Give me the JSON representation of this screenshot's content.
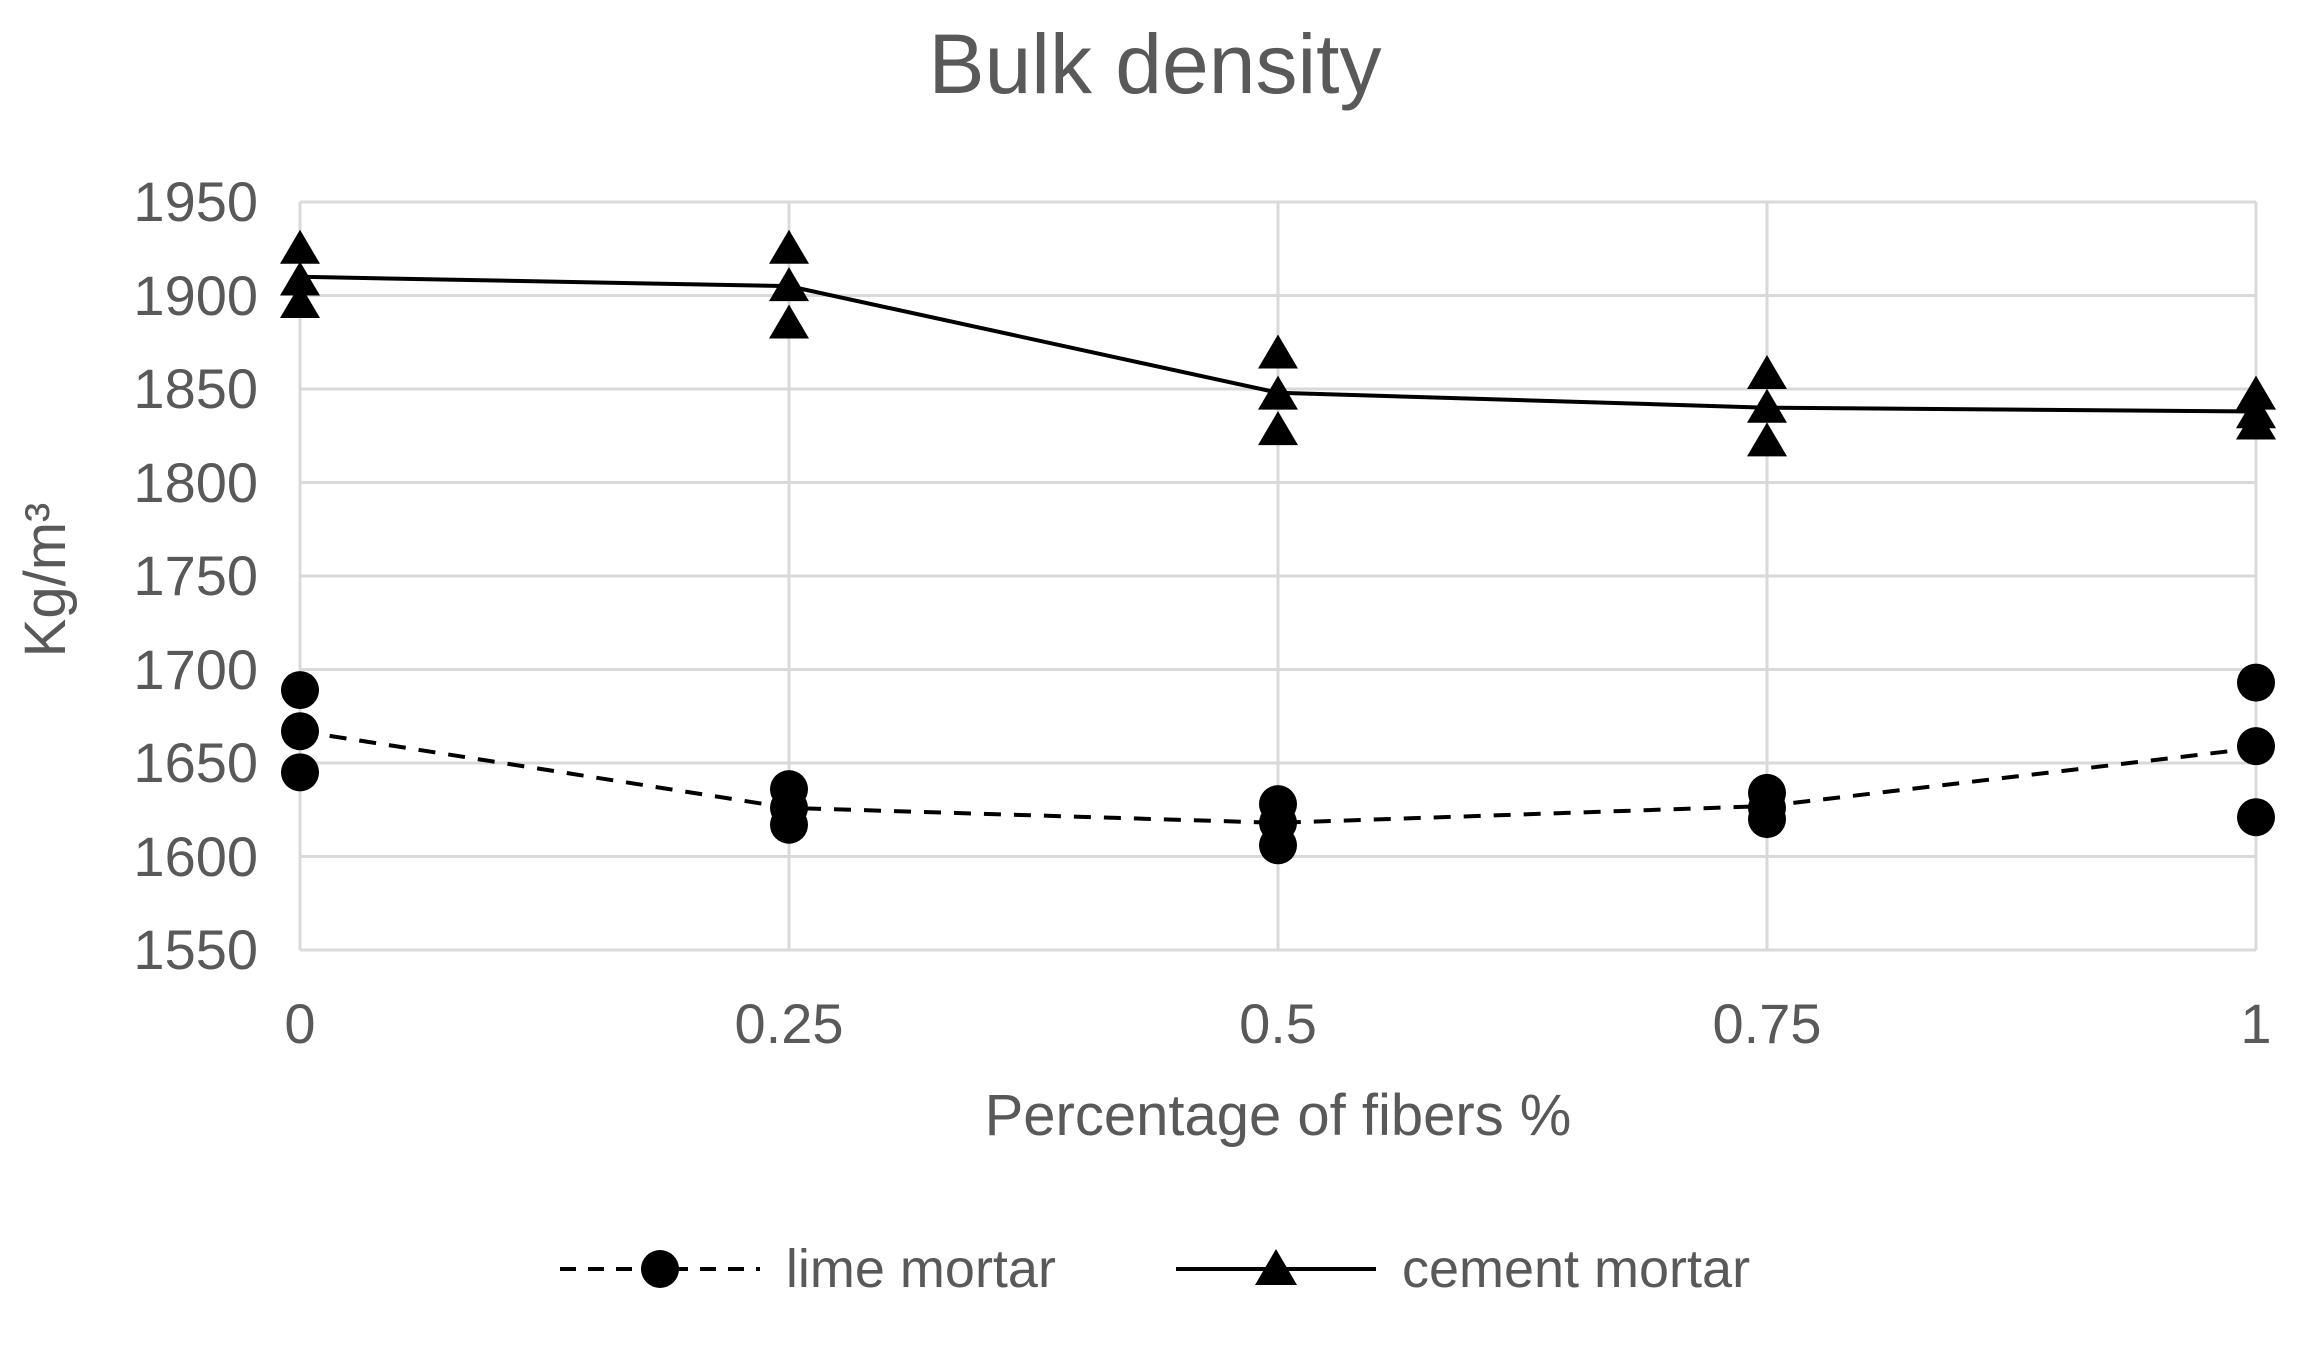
{
  "chart_data": {
    "type": "scatter",
    "title": "Bulk density",
    "xlabel": "Percentage of fibers %",
    "ylabel": "Kg/m³",
    "x_tick_labels": [
      "0",
      "0.25",
      "0.5",
      "0.75",
      "1"
    ],
    "x_values": [
      0,
      0.25,
      0.5,
      0.75,
      1
    ],
    "ylim": [
      1550,
      1950
    ],
    "y_ticks": [
      1950,
      1900,
      1850,
      1800,
      1750,
      1700,
      1650,
      1600,
      1550
    ],
    "grid": true,
    "legend_position": "bottom",
    "series": [
      {
        "name": "lime mortar",
        "marker": "circle",
        "line_style": "dashed",
        "points": [
          [
            0,
            1689
          ],
          [
            0,
            1667
          ],
          [
            0,
            1645
          ],
          [
            0.25,
            1636
          ],
          [
            0.25,
            1626
          ],
          [
            0.25,
            1617
          ],
          [
            0.5,
            1628
          ],
          [
            0.5,
            1618
          ],
          [
            0.5,
            1606
          ],
          [
            0.75,
            1634
          ],
          [
            0.75,
            1626
          ],
          [
            0.75,
            1620
          ],
          [
            1,
            1693
          ],
          [
            1,
            1659
          ],
          [
            1,
            1621
          ]
        ],
        "line_values": [
          1667,
          1626,
          1618,
          1627,
          1658
        ]
      },
      {
        "name": "cement mortar",
        "marker": "triangle",
        "line_style": "solid",
        "points": [
          [
            0,
            1925
          ],
          [
            0,
            1908
          ],
          [
            0,
            1896
          ],
          [
            0.25,
            1925
          ],
          [
            0.25,
            1905
          ],
          [
            0.25,
            1885
          ],
          [
            0.5,
            1869
          ],
          [
            0.5,
            1847
          ],
          [
            0.5,
            1828
          ],
          [
            0.75,
            1858
          ],
          [
            0.75,
            1840
          ],
          [
            0.75,
            1822
          ],
          [
            1,
            1847
          ],
          [
            1,
            1837
          ],
          [
            1,
            1831
          ]
        ],
        "line_values": [
          1910,
          1905,
          1848,
          1840,
          1838
        ]
      }
    ],
    "colors": {
      "marker": "#000000",
      "line": "#000000",
      "grid": "#d9d9d9",
      "text": "#595959",
      "background": "#ffffff"
    }
  }
}
